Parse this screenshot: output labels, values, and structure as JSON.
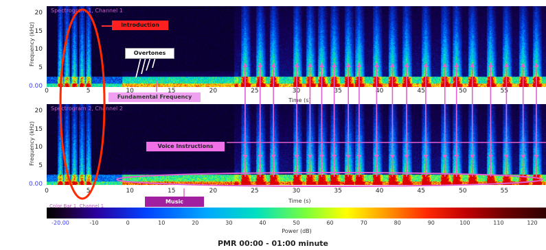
{
  "chart_data": [
    {
      "type": "heatmap",
      "title": "Spectrogram 1, Channel 1",
      "xlabel": "Time (s)",
      "ylabel": "Frequency (kHz)",
      "xlim": [
        0,
        60
      ],
      "ylim": [
        0,
        22
      ],
      "xticks": [
        "0",
        "5",
        "10",
        "15",
        "20",
        "25",
        "30",
        "35",
        "40",
        "45",
        "50",
        "55"
      ],
      "yticks": [
        "0.00",
        "5",
        "10",
        "15",
        "20"
      ]
    },
    {
      "type": "heatmap",
      "title": "Spectrogram 2, Channel 2",
      "xlabel": "Time (s)",
      "ylabel": "Frequency (kHz)",
      "xlim": [
        0,
        60
      ],
      "ylim": [
        0,
        22
      ],
      "xticks": [
        "0",
        "5",
        "10",
        "15",
        "20",
        "25",
        "30",
        "35",
        "40",
        "45",
        "50",
        "55"
      ],
      "yticks": [
        "0.00",
        "5",
        "10",
        "15",
        "20"
      ]
    }
  ],
  "colorbar": {
    "title": "Color Bar 1, Channel 1",
    "label": "Power (dB)",
    "ticks": [
      "-20.00",
      "-10",
      "0",
      "10",
      "20",
      "30",
      "40",
      "50",
      "60",
      "70",
      "80",
      "90",
      "100",
      "110",
      "120"
    ]
  },
  "annotations": {
    "introduction": "Introduction",
    "overtones": "Overtones",
    "fundamental": "Fundamental Frequency",
    "voice": "Voice Instructions",
    "music": "Music"
  },
  "bursts": [
    23.6,
    25.4,
    27.0,
    29.8,
    31.4,
    32.8,
    34.3,
    36.0,
    37.3,
    39.4,
    41.3,
    43.0,
    45.3,
    47.6,
    49.0,
    50.9,
    53.1,
    55.0,
    57.0,
    58.6
  ],
  "caption": "PMR 00:00 - 01:00 minute",
  "colors": {
    "accent": "#e060d0",
    "intro_ring": "#ff2a00",
    "intro_box": "#ff2020"
  }
}
